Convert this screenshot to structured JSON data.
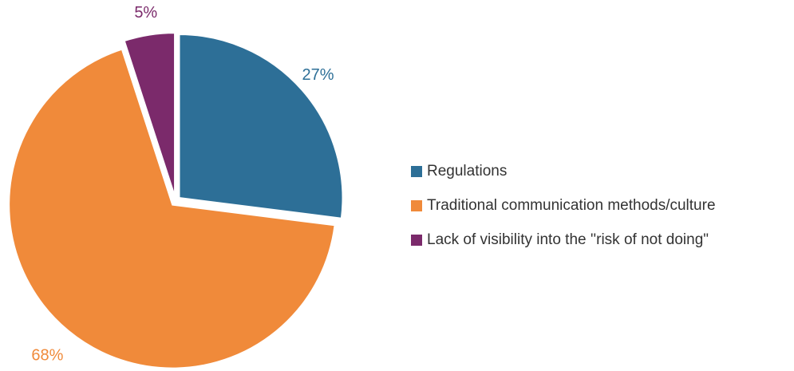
{
  "chart_data": {
    "type": "pie",
    "categories": [
      "Regulations",
      "Traditional communication methods/culture",
      "Lack of visibility into the ''risk of not doing\""
    ],
    "values": [
      27,
      68,
      5
    ],
    "value_labels": [
      "27%",
      "68%",
      "5%"
    ],
    "colors": [
      "#2d6f97",
      "#f08a3a",
      "#7b2a6b"
    ],
    "legend": "right"
  }
}
